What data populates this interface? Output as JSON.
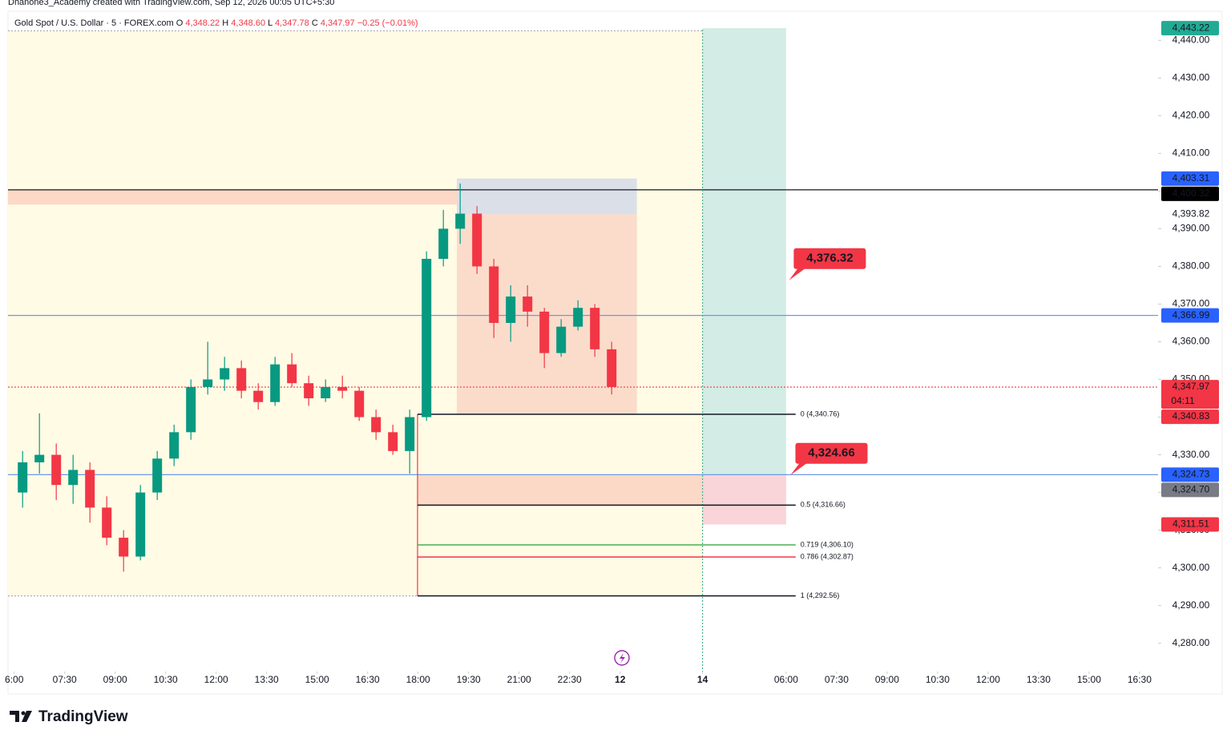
{
  "header": {
    "credit": "Dhanone3_Academy created with TradingView.com, Sep 12, 2026 00:05 UTC+5:30"
  },
  "chart_data": {
    "type": "candlestick",
    "symbol": "Gold Spot / U.S. Dollar · 5 · FOREX.com",
    "legend_values": [
      {
        "key": "O",
        "text": "4,348.22"
      },
      {
        "key": "H",
        "text": "4,348.60"
      },
      {
        "key": "L",
        "text": "4,347.78"
      },
      {
        "key": "C",
        "text": "4,347.97"
      }
    ],
    "change": "−0.25 (−0.01%)",
    "x": [
      0,
      30,
      60,
      90,
      120,
      150,
      180,
      210,
      240,
      270,
      300,
      330,
      360,
      390,
      420,
      450,
      480,
      510,
      540,
      570,
      600,
      630,
      660,
      690,
      720,
      750,
      780,
      810,
      840,
      870,
      900,
      930,
      960,
      990,
      1020,
      1050
    ],
    "open": [
      4320,
      4328,
      4330,
      4322,
      4326,
      4316,
      4308,
      4303,
      4320,
      4329,
      4336,
      4348,
      4350,
      4353,
      4347,
      4344,
      4354,
      4349,
      4345,
      4348,
      4347,
      4340,
      4336,
      4331,
      4340,
      4382,
      4390,
      4394,
      4380,
      4365,
      4372,
      4368,
      4357,
      4364,
      4369,
      4358
    ],
    "high": [
      4331,
      4341,
      4333,
      4330,
      4328,
      4319,
      4310,
      4322,
      4331,
      4338,
      4350,
      4360,
      4356,
      4355,
      4349,
      4356,
      4357,
      4351,
      4350,
      4351,
      4348,
      4342,
      4338,
      4342,
      4384,
      4395,
      4402,
      4396,
      4382,
      4375,
      4375,
      4369,
      4366,
      4371,
      4370,
      4360
    ],
    "low": [
      4316,
      4325,
      4318,
      4317,
      4312,
      4306,
      4299,
      4302,
      4318,
      4327,
      4334,
      4346,
      4347,
      4345,
      4342,
      4343,
      4348,
      4343,
      4344,
      4345,
      4339,
      4334,
      4330,
      4325,
      4339,
      4380,
      4386,
      4378,
      4361,
      4360,
      4364,
      4353,
      4356,
      4363,
      4356,
      4346
    ],
    "close": [
      4328,
      4330,
      4322,
      4326,
      4316,
      4308,
      4303,
      4320,
      4329,
      4336,
      4348,
      4350,
      4353,
      4347,
      4344,
      4354,
      4349,
      4345,
      4348,
      4347,
      4340,
      4336,
      4331,
      4340,
      4382,
      4390,
      4394,
      4380,
      4365,
      4372,
      4368,
      4357,
      4364,
      4369,
      4358,
      4348
    ],
    "up_color": "#089981",
    "down_color": "#f23645",
    "xlim": [
      -11,
      2039
    ],
    "xticks": [
      {
        "value": 0,
        "label": "6:00"
      },
      {
        "value": 90,
        "label": "07:30"
      },
      {
        "value": 180,
        "label": "09:00"
      },
      {
        "value": 270,
        "label": "10:30"
      },
      {
        "value": 360,
        "label": "12:00"
      },
      {
        "value": 450,
        "label": "13:30"
      },
      {
        "value": 540,
        "label": "15:00"
      },
      {
        "value": 630,
        "label": "16:30"
      },
      {
        "value": 720,
        "label": "18:00"
      },
      {
        "value": 810,
        "label": "19:30"
      },
      {
        "value": 900,
        "label": "21:00"
      },
      {
        "value": 990,
        "label": "22:30"
      },
      {
        "value": 1080,
        "label": "12"
      },
      {
        "value": 1227,
        "label": "14"
      },
      {
        "value": 1376,
        "label": "06:00"
      },
      {
        "value": 1466,
        "label": "07:30"
      },
      {
        "value": 1556,
        "label": "09:00"
      },
      {
        "value": 1646,
        "label": "10:30"
      },
      {
        "value": 1736,
        "label": "12:00"
      },
      {
        "value": 1826,
        "label": "13:30"
      },
      {
        "value": 1916,
        "label": "15:00"
      },
      {
        "value": 2006,
        "label": "16:30"
      }
    ],
    "ylim": [
      4272.5,
      4447.5
    ],
    "yticks": [
      {
        "value": 4280,
        "label": "4,280.00"
      },
      {
        "value": 4290,
        "label": "4,290.00"
      },
      {
        "value": 4300,
        "label": "4,300.00"
      },
      {
        "value": 4310,
        "label": "4,310.00"
      },
      {
        "value": 4320,
        "label": "4,320.00"
      },
      {
        "value": 4330,
        "label": "4,330.00"
      },
      {
        "value": 4340,
        "label": "4,340.00"
      },
      {
        "value": 4350,
        "label": "4,350.00"
      },
      {
        "value": 4360,
        "label": "4,360.00"
      },
      {
        "value": 4370,
        "label": "4,370.00"
      },
      {
        "value": 4380,
        "label": "4,380.00"
      },
      {
        "value": 4390,
        "label": "4,390.00"
      },
      {
        "value": 4400,
        "label": "4,400.00"
      },
      {
        "value": 4410,
        "label": "4,410.00"
      },
      {
        "value": 4420,
        "label": "4,420.00"
      },
      {
        "value": 4430,
        "label": "4,430.00"
      },
      {
        "value": 4440,
        "label": "4,440.00"
      }
    ],
    "zones": [
      {
        "x": [
          -11,
          1227
        ],
        "y": [
          4292.56,
          4442.5
        ],
        "color": "#fffbe5"
      },
      {
        "x": [
          1227,
          1376
        ],
        "y": [
          4324.73,
          4443.22
        ],
        "color": "#d3ece5"
      },
      {
        "x": [
          1227,
          1376
        ],
        "y": [
          4311.51,
          4324.73
        ],
        "color": "#f9d4d8"
      },
      {
        "x": [
          -11,
          789
        ],
        "y": [
          4396.4,
          4400.32
        ],
        "color": "#fbd9c6"
      },
      {
        "x": [
          789,
          1110
        ],
        "y": [
          4393.82,
          4403.31
        ],
        "color": "#dbe0e8"
      },
      {
        "x": [
          789,
          1110
        ],
        "y": [
          4340.83,
          4393.82
        ],
        "color": "#fbdccb"
      },
      {
        "x": [
          719,
          1227
        ],
        "y": [
          4316.66,
          4324.73
        ],
        "color": "#fbd9c6"
      }
    ],
    "hlines": [
      {
        "value": 4442.5,
        "color": "#b0b0b0",
        "style": "dotted",
        "x": [
          -11,
          1227
        ]
      },
      {
        "value": 4400.32,
        "color": "#131722",
        "style": "solid"
      },
      {
        "value": 4366.99,
        "color": "#6f97e8",
        "style": "solid"
      },
      {
        "value": 4347.97,
        "color": "#f23645",
        "style": "dotted"
      },
      {
        "value": 4324.73,
        "color": "#6f97e8",
        "style": "solid"
      },
      {
        "value": 4292.56,
        "color": "#b0b0b0",
        "style": "dotted",
        "x": [
          -11,
          719
        ]
      }
    ],
    "vlines": [
      {
        "x": 719,
        "y": [
          4292.56,
          4340.76
        ],
        "color": "#f23645",
        "style": "solid"
      },
      {
        "x": 1227,
        "color": "#4caf93",
        "style": "dotted"
      }
    ],
    "fib": {
      "x": [
        719,
        1393
      ],
      "levels": [
        {
          "value": 4340.76,
          "label": "0 (4,340.76)",
          "color": "#131722"
        },
        {
          "value": 4316.66,
          "label": "0.5 (4,316.66)",
          "color": "#131722"
        },
        {
          "value": 4306.1,
          "label": "0.719 (4,306.10)",
          "color": "#4caf50"
        },
        {
          "value": 4302.87,
          "label": "0.786 (4,302.87)",
          "color": "#f23645"
        },
        {
          "value": 4292.56,
          "label": "1 (4,292.56)",
          "color": "#131722"
        }
      ]
    },
    "callouts": [
      {
        "value": 4376.32,
        "label": "4,376.32",
        "x": 1381
      },
      {
        "value": 4324.66,
        "label": "4,324.66",
        "x": 1384
      }
    ],
    "price_labels": [
      {
        "value": 4443.22,
        "label": "4,443.22",
        "color": "#22ab94",
        "text_color": "#ffffff"
      },
      {
        "value": 4403.31,
        "label": "4,403.31",
        "color": "#2962ff",
        "text_color": "#ffffff"
      },
      {
        "value": 4400.32,
        "label": "4,400.32",
        "color": "#000000",
        "text_color": "#ffffff"
      },
      {
        "value": 4393.82,
        "label": "4,393.82",
        "color": "#ffffff",
        "text_color": "#131722"
      },
      {
        "value": 4366.99,
        "label": "4,366.99",
        "color": "#2962ff",
        "text_color": "#ffffff"
      },
      {
        "value": 4347.97,
        "label": "4,347.97",
        "color": "#f23645",
        "text_color": "#ffffff",
        "countdown": "04:11"
      },
      {
        "value": 4340.83,
        "label": "4,340.83",
        "color": "#f23645",
        "text_color": "#ffffff"
      },
      {
        "value": 4324.73,
        "label": "4,324.73",
        "color": "#2962ff",
        "text_color": "#ffffff"
      },
      {
        "value": 4324.7,
        "label": "4,324.70",
        "color": "#787b86",
        "text_color": "#ffffff"
      },
      {
        "value": 4311.51,
        "label": "4,311.51",
        "color": "#f23645",
        "text_color": "#ffffff"
      }
    ]
  },
  "footer": {
    "logo": "TradingView"
  }
}
